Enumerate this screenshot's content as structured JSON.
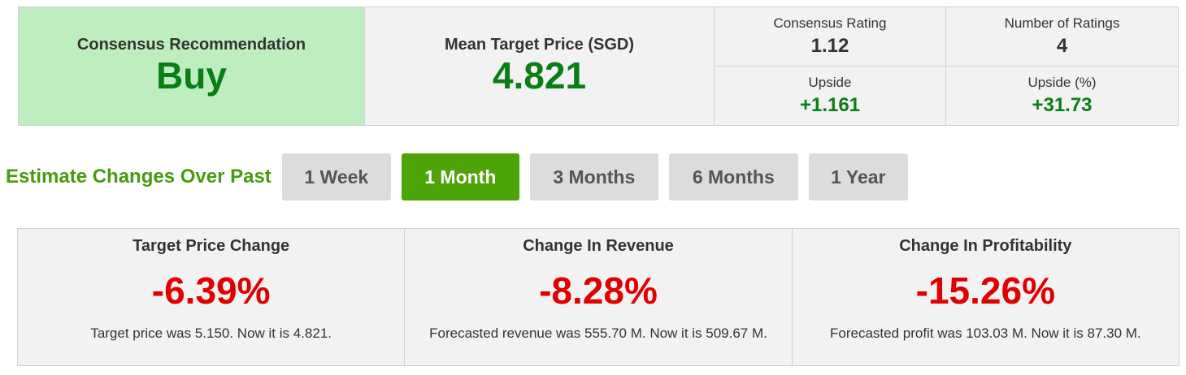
{
  "consensus": {
    "recommendation_label": "Consensus Recommendation",
    "recommendation_value": "Buy",
    "mean_target_label": "Mean Target Price (SGD)",
    "mean_target_value": "4.821",
    "rating_label": "Consensus Rating",
    "rating_value": "1.12",
    "num_ratings_label": "Number of Ratings",
    "num_ratings_value": "4",
    "upside_label": "Upside",
    "upside_value": "+1.161",
    "upside_pct_label": "Upside (%)",
    "upside_pct_value": "+31.73"
  },
  "period": {
    "title": "Estimate Changes Over Past",
    "options": [
      "1 Week",
      "1 Month",
      "3 Months",
      "6 Months",
      "1 Year"
    ],
    "selected": "1 Month"
  },
  "changes": [
    {
      "title": "Target Price Change",
      "value": "-6.39%",
      "description": "Target price was 5.150. Now it is 4.821."
    },
    {
      "title": "Change In Revenue",
      "value": "-8.28%",
      "description": "Forecasted revenue was 555.70 M. Now it is 509.67 M."
    },
    {
      "title": "Change In Profitability",
      "value": "-15.26%",
      "description": "Forecasted profit was 103.03 M. Now it is 87.30 M."
    }
  ],
  "colors": {
    "positive": "#0a7d14",
    "negative": "#e00000",
    "accent": "#4ea50a",
    "recommendation_bg": "#beedc0"
  }
}
